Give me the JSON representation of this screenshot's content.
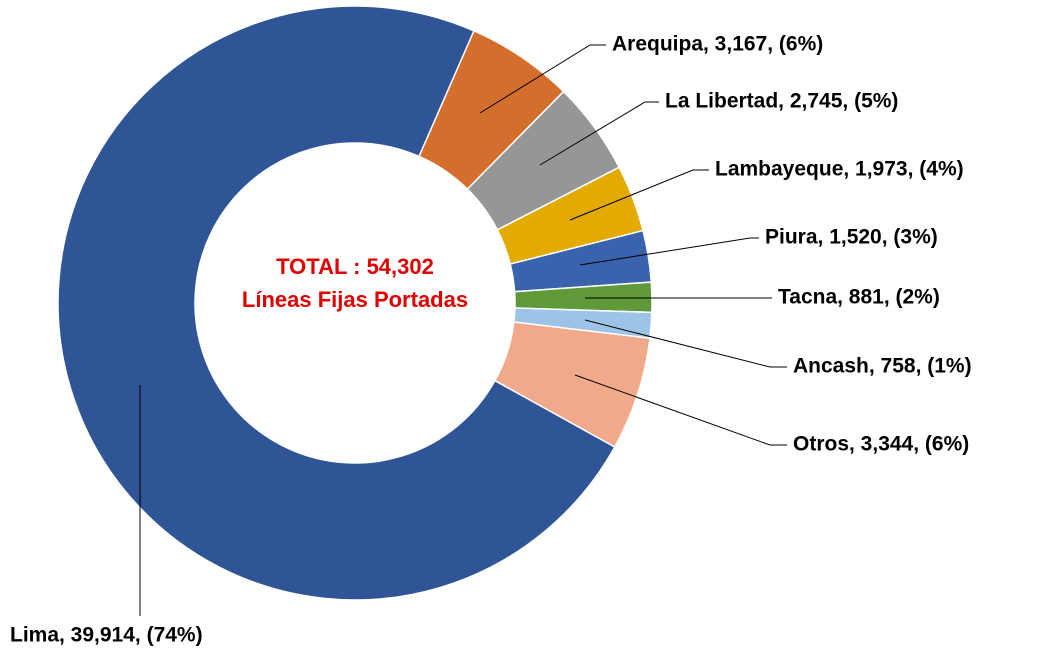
{
  "chart_data": {
    "type": "donut",
    "categories": [
      "Lima",
      "Arequipa",
      "La Libertad",
      "Lambayeque",
      "Piura",
      "Tacna",
      "Ancash",
      "Otros"
    ],
    "values": [
      39914,
      3167,
      2745,
      1973,
      1520,
      881,
      758,
      3344
    ],
    "value_labels": [
      "Lima, 39,914, (74%)",
      "Arequipa, 3,167, (6%)",
      "La Libertad, 2,745, (5%)",
      "Lambayeque, 1,973, (4%)",
      "Piura, 1,520, (3%)",
      "Tacna, 881, (2%)",
      "Ancash, 758, (1%)",
      "Otros, 3,344, (6%)"
    ],
    "colors": [
      "#2f5597",
      "#d46e2c",
      "#969696",
      "#e3aa00",
      "#3a63ad",
      "#5f993a",
      "#9dc3e6",
      "#f0a98a"
    ],
    "annotations": [
      "TOTAL : 54,302",
      "Líneas Fijas Portadas"
    ],
    "annotation_color": "#e00000"
  }
}
